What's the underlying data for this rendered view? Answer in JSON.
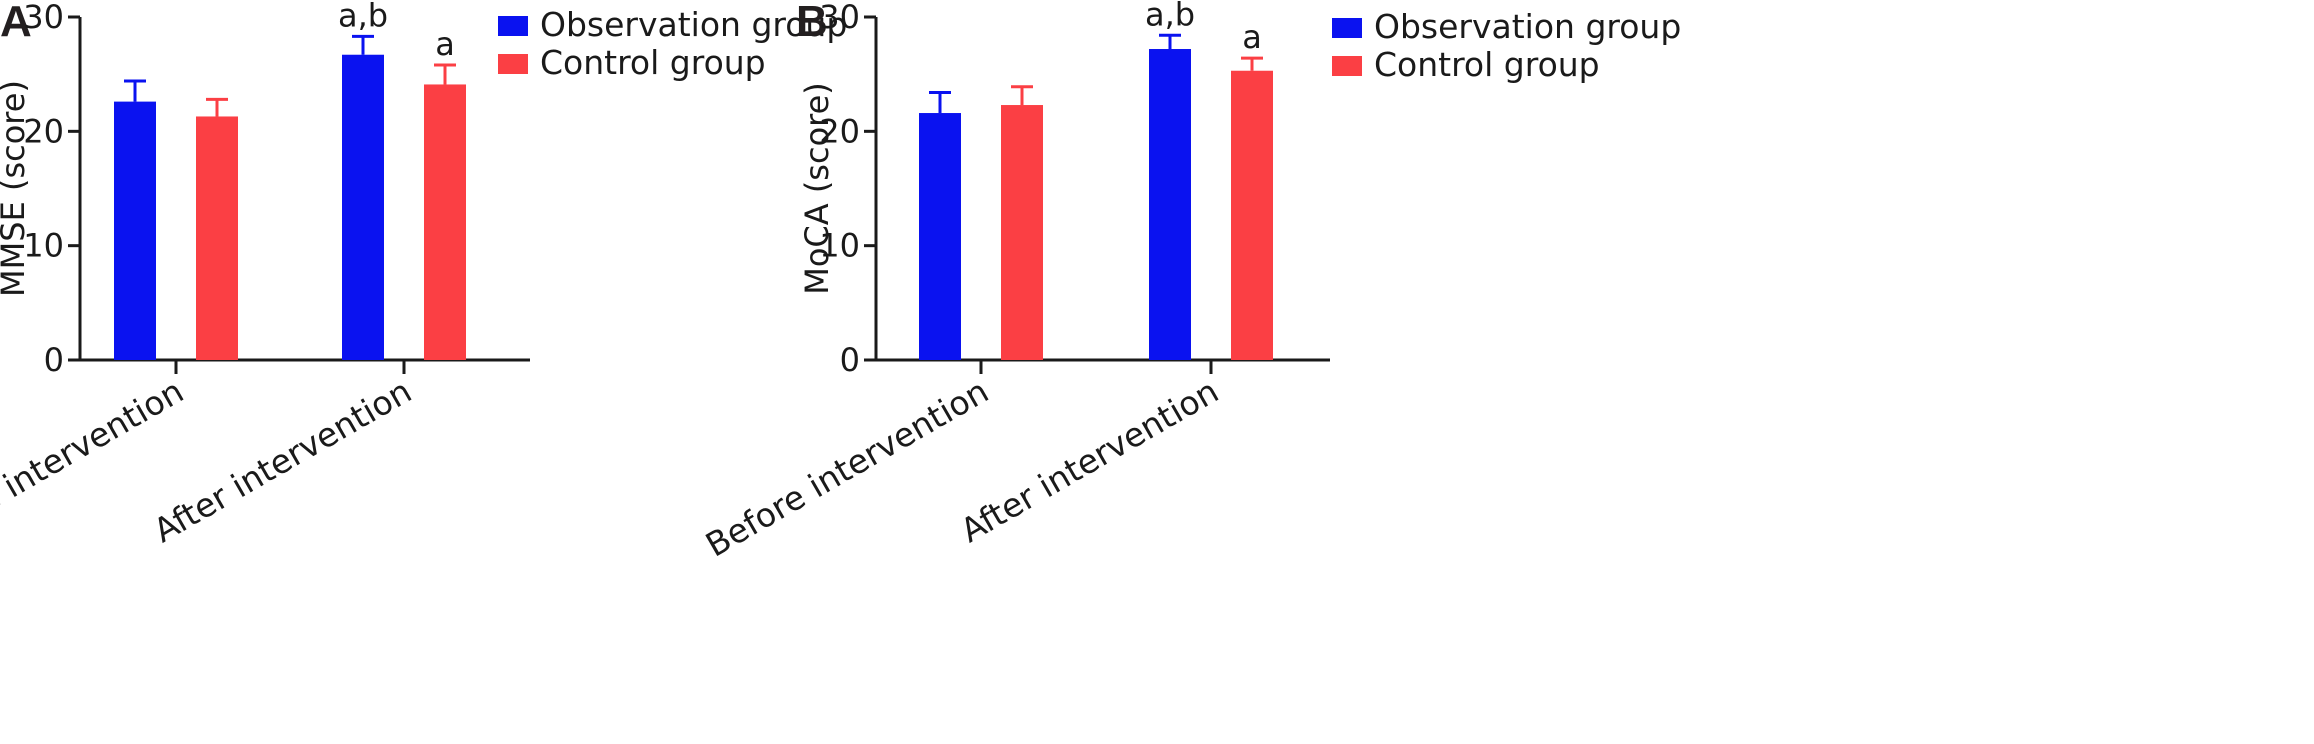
{
  "colors": {
    "observation": "#0a12f0",
    "control": "#fb3f44",
    "axis": "#1a1a1a"
  },
  "chart_data": [
    {
      "panel": "A",
      "type": "bar",
      "ylabel": "MMSE (score)",
      "xlabel": "",
      "ylim": [
        0,
        30
      ],
      "yticks": [
        0,
        10,
        20,
        30
      ],
      "categories": [
        "Before intervention",
        "After intervention"
      ],
      "legend_position": "top-right",
      "series": [
        {
          "name": "Observation group",
          "color": "#0a12f0",
          "values": [
            22.6,
            26.7
          ],
          "errors": [
            1.8,
            1.6
          ],
          "annotations": [
            "",
            "a,b"
          ]
        },
        {
          "name": "Control group",
          "color": "#fb3f44",
          "values": [
            21.3,
            24.1
          ],
          "errors": [
            1.5,
            1.7
          ],
          "annotations": [
            "",
            "a"
          ]
        }
      ]
    },
    {
      "panel": "B",
      "type": "bar",
      "ylabel": "MoCA (score)",
      "xlabel": "",
      "ylim": [
        0,
        30
      ],
      "yticks": [
        0,
        10,
        20,
        30
      ],
      "categories": [
        "Before intervention",
        "After intervention"
      ],
      "legend_position": "top-right",
      "series": [
        {
          "name": "Observation group",
          "color": "#0a12f0",
          "values": [
            21.6,
            27.2
          ],
          "errors": [
            1.8,
            1.2
          ],
          "annotations": [
            "",
            "a,b"
          ]
        },
        {
          "name": "Control group",
          "color": "#fb3f44",
          "values": [
            22.3,
            25.3
          ],
          "errors": [
            1.6,
            1.1
          ],
          "annotations": [
            "",
            "a"
          ]
        }
      ]
    }
  ]
}
